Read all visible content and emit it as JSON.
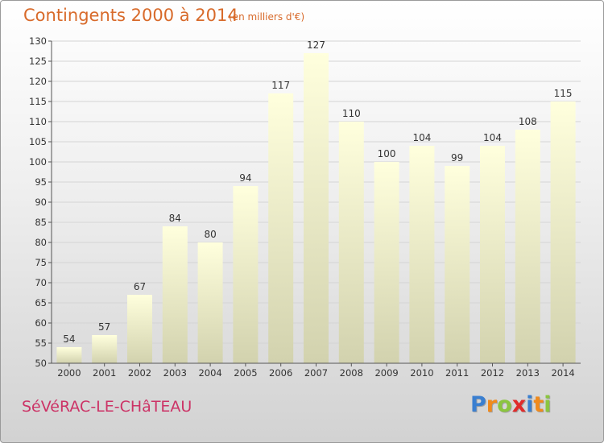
{
  "header": {
    "title": "Contingents 2000 à 2014",
    "subtitle": "(en milliers d'€)"
  },
  "footer": {
    "city": "SéVéRAC-LE-CHâTEAU",
    "logo_letters": [
      {
        "ch": "P",
        "color": "#3a7fd0"
      },
      {
        "ch": "r",
        "color": "#f08a1c"
      },
      {
        "ch": "o",
        "color": "#8bc53f"
      },
      {
        "ch": "x",
        "color": "#e02b2b"
      },
      {
        "ch": "i",
        "color": "#3a7fd0"
      },
      {
        "ch": "t",
        "color": "#f08a1c"
      },
      {
        "ch": "i",
        "color": "#8bc53f"
      }
    ]
  },
  "chart_data": {
    "type": "bar",
    "title": "Contingents 2000 à 2014",
    "subtitle": "(en milliers d'€)",
    "xlabel": "",
    "ylabel": "",
    "categories": [
      "2000",
      "2001",
      "2002",
      "2003",
      "2004",
      "2005",
      "2006",
      "2007",
      "2008",
      "2009",
      "2010",
      "2011",
      "2012",
      "2013",
      "2014"
    ],
    "values": [
      54,
      57,
      67,
      84,
      80,
      94,
      117,
      127,
      110,
      100,
      104,
      99,
      104,
      108,
      115
    ],
    "ylim": [
      50,
      130
    ],
    "yticks": [
      50,
      55,
      60,
      65,
      70,
      75,
      80,
      85,
      90,
      95,
      100,
      105,
      110,
      115,
      120,
      125,
      130
    ],
    "grid": true,
    "legend": "none",
    "bar_color_top": "#ffffdd",
    "bar_color_bottom": "#d2d2ae"
  }
}
